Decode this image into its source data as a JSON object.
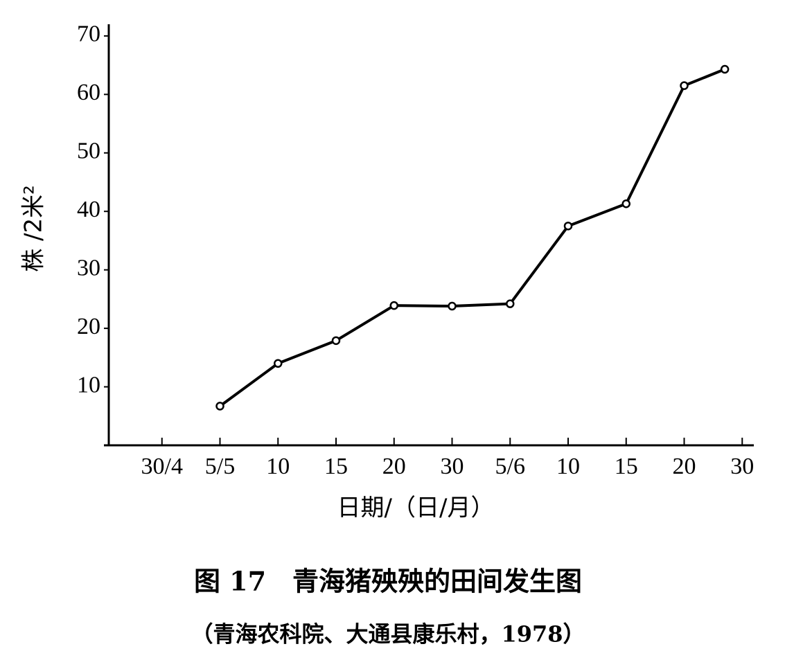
{
  "chart_data": {
    "type": "line",
    "title": "图 17　青海猪殃殃的田间发生图",
    "subtitle": "（青海农科院、大通县康乐村，1978）",
    "x_label": "日期/（日/月）",
    "y_label": "株 /2米²",
    "x": [
      1,
      2,
      3,
      4,
      5,
      6,
      7,
      8,
      9,
      9.7
    ],
    "series": [
      {
        "color": "#000000",
        "values": [
          6.7,
          14.0,
          17.9,
          23.9,
          23.8,
          24.2,
          37.5,
          41.3,
          61.5,
          64.3
        ]
      }
    ],
    "xlim": [
      -1,
      10.2
    ],
    "xticks": [
      {
        "value": 0,
        "label": "30/4"
      },
      {
        "value": 1,
        "label": "5/5"
      },
      {
        "value": 2,
        "label": "10"
      },
      {
        "value": 3,
        "label": "15"
      },
      {
        "value": 4,
        "label": "20"
      },
      {
        "value": 5,
        "label": "30"
      },
      {
        "value": 6,
        "label": "5/6"
      },
      {
        "value": 7,
        "label": "10"
      },
      {
        "value": 8,
        "label": "15"
      },
      {
        "value": 9,
        "label": "20"
      },
      {
        "value": 10,
        "label": "30"
      }
    ],
    "ylim": [
      0,
      72
    ],
    "yticks": [
      10,
      20,
      30,
      40,
      50,
      60,
      70
    ],
    "grid": false
  }
}
